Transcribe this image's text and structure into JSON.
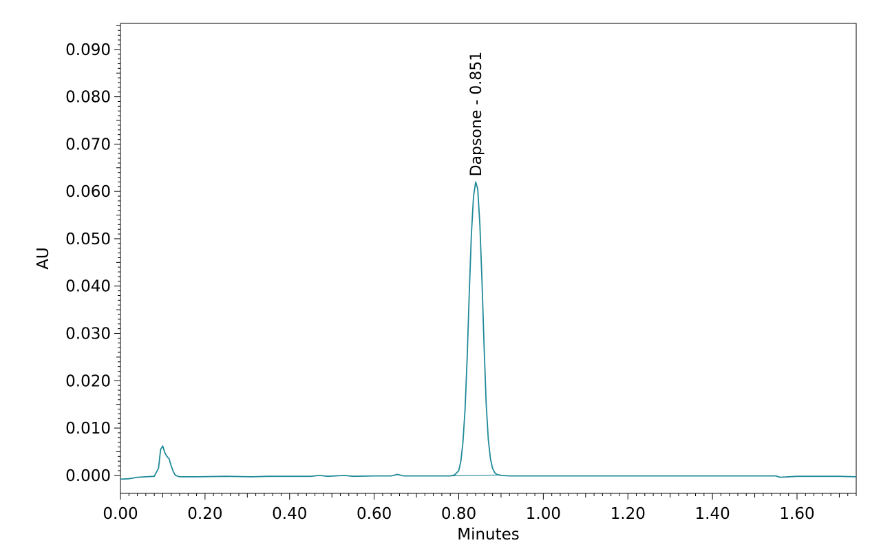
{
  "chart_data": {
    "type": "line",
    "xlabel": "Minutes",
    "ylabel": "AU",
    "xlim": [
      0.0,
      1.74
    ],
    "ylim": [
      -0.0038,
      0.0955
    ],
    "x_ticks": [
      "0.00",
      "0.20",
      "0.40",
      "0.60",
      "0.80",
      "1.00",
      "1.20",
      "1.40",
      "1.60"
    ],
    "x_tick_values": [
      0.0,
      0.2,
      0.4,
      0.6,
      0.8,
      1.0,
      1.2,
      1.4,
      1.6
    ],
    "y_ticks": [
      "0.000",
      "0.010",
      "0.020",
      "0.030",
      "0.040",
      "0.050",
      "0.060",
      "0.070",
      "0.080",
      "0.090"
    ],
    "y_tick_values": [
      0.0,
      0.01,
      0.02,
      0.03,
      0.04,
      0.05,
      0.06,
      0.07,
      0.08,
      0.09
    ],
    "grid": false,
    "series": [
      {
        "color": "#1f8a98",
        "x": [
          0.0,
          0.02,
          0.04,
          0.06,
          0.08,
          0.09,
          0.095,
          0.1,
          0.105,
          0.11,
          0.115,
          0.12,
          0.125,
          0.13,
          0.14,
          0.18,
          0.25,
          0.31,
          0.35,
          0.45,
          0.47,
          0.49,
          0.53,
          0.55,
          0.6,
          0.64,
          0.655,
          0.67,
          0.7,
          0.75,
          0.78,
          0.79,
          0.8,
          0.805,
          0.81,
          0.815,
          0.82,
          0.825,
          0.83,
          0.835,
          0.84,
          0.845,
          0.85,
          0.855,
          0.86,
          0.865,
          0.87,
          0.875,
          0.88,
          0.885,
          0.89,
          0.9,
          0.92,
          1.0,
          1.2,
          1.4,
          1.55,
          1.56,
          1.6,
          1.7,
          1.74
        ],
        "y": [
          -0.0008,
          -0.0007,
          -0.0004,
          -0.0003,
          -0.0002,
          0.0015,
          0.0055,
          0.0062,
          0.0048,
          0.004,
          0.0035,
          0.002,
          0.0008,
          0.0,
          -0.0003,
          -0.0003,
          -0.0002,
          -0.0003,
          -0.0002,
          -0.0002,
          0.0,
          -0.0002,
          0.0,
          -0.0002,
          -0.0001,
          -0.0001,
          0.0002,
          -0.0001,
          -0.0001,
          -0.0001,
          -0.0001,
          0.0001,
          0.001,
          0.003,
          0.007,
          0.014,
          0.025,
          0.039,
          0.051,
          0.059,
          0.062,
          0.0605,
          0.053,
          0.041,
          0.027,
          0.015,
          0.0075,
          0.0035,
          0.0015,
          0.0006,
          0.0002,
          0.0,
          -0.0001,
          -0.0001,
          -0.0001,
          -0.0001,
          -0.0001,
          -0.0004,
          -0.0002,
          -0.0002,
          -0.0003
        ]
      }
    ],
    "annotations": [
      {
        "text": "Dapsone - 0.851",
        "x": 0.84,
        "y": 0.062,
        "rotation": -90
      }
    ],
    "baseline_segment": {
      "x": [
        0.78,
        0.9
      ],
      "y": [
        -0.0001,
        0.0001
      ]
    }
  }
}
